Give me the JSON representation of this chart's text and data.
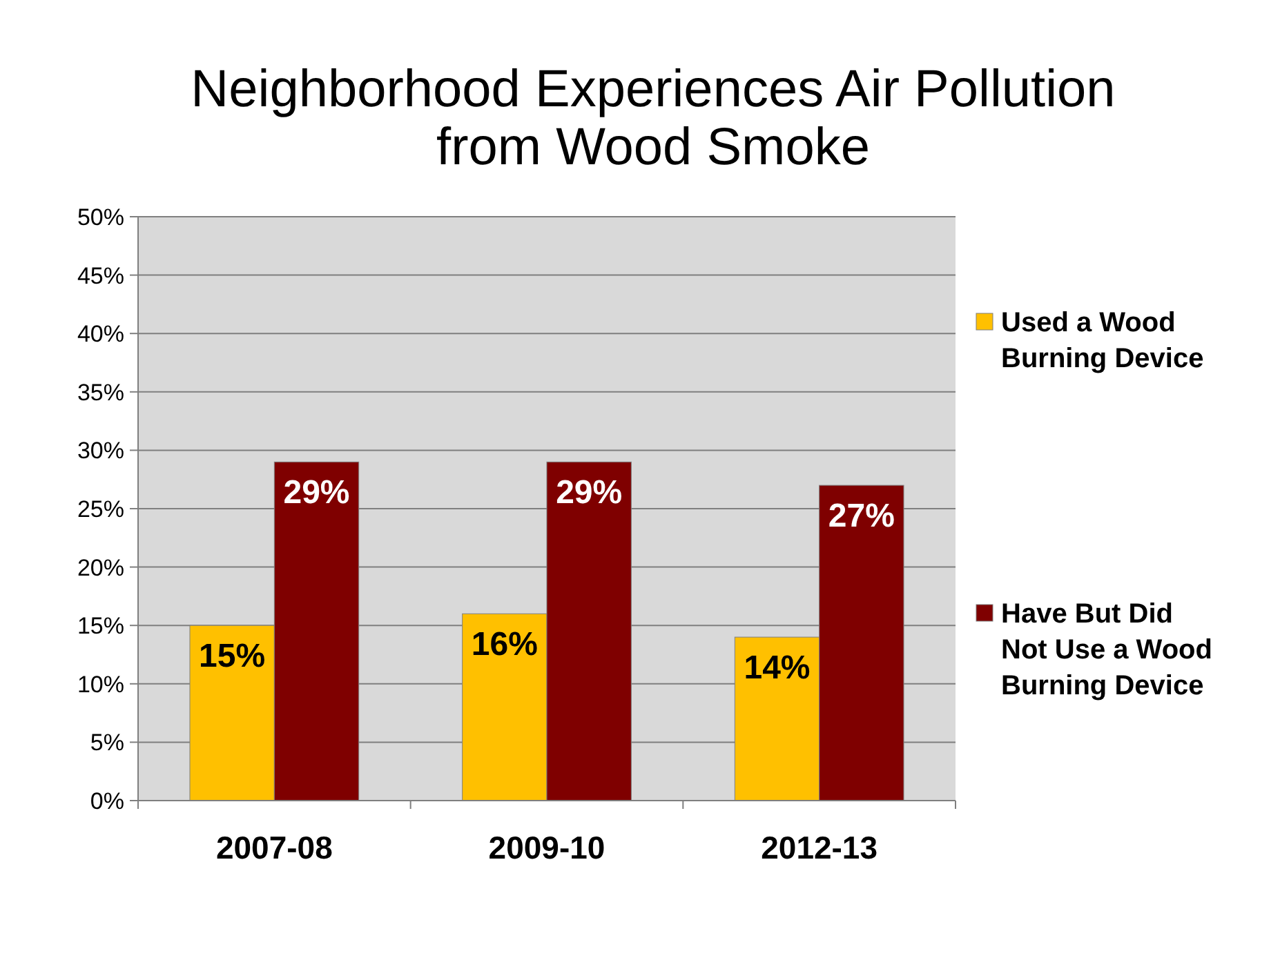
{
  "chart_data": {
    "type": "bar",
    "title": "Neighborhood Experiences Air Pollution from Wood Smoke",
    "categories": [
      "2007-08",
      "2009-10",
      "2012-13"
    ],
    "series": [
      {
        "name": "Used a Wood Burning Device",
        "color": "#ffc000",
        "values": [
          15,
          16,
          14
        ],
        "value_labels": [
          "15%",
          "16%",
          "14%"
        ]
      },
      {
        "name": "Have But Did Not Use a Wood Burning Device",
        "color": "#7f0000",
        "values": [
          29,
          29,
          27
        ],
        "value_labels": [
          "29%",
          "29%",
          "27%"
        ]
      }
    ],
    "ylim": [
      0,
      50
    ],
    "yticks": [
      {
        "value": 0,
        "label": "0%"
      },
      {
        "value": 5,
        "label": "5%"
      },
      {
        "value": 10,
        "label": "10%"
      },
      {
        "value": 15,
        "label": "15%"
      },
      {
        "value": 20,
        "label": "20%"
      },
      {
        "value": 25,
        "label": "25%"
      },
      {
        "value": 30,
        "label": "30%"
      },
      {
        "value": 35,
        "label": "35%"
      },
      {
        "value": 40,
        "label": "40%"
      },
      {
        "value": 45,
        "label": "45%"
      },
      {
        "value": 50,
        "label": "50%"
      }
    ],
    "grid": "y",
    "legend": "right"
  }
}
